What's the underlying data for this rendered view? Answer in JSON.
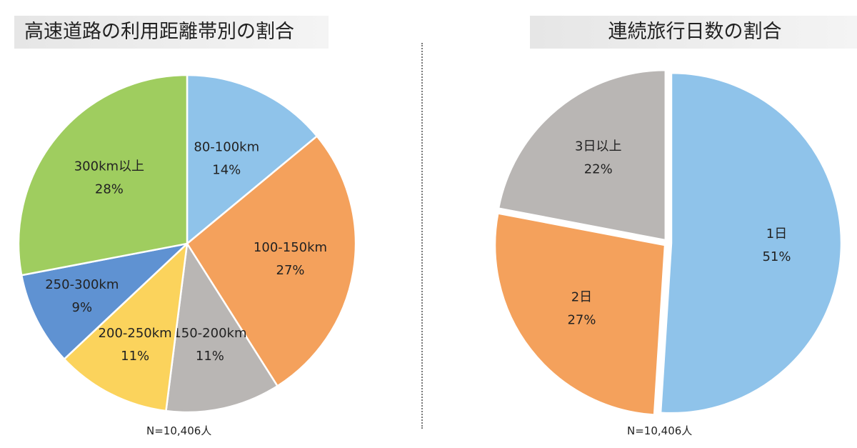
{
  "chart_data": [
    {
      "type": "pie",
      "title": "高速道路の利用距離帯別の割合",
      "note": "N=10,406人",
      "slices": [
        {
          "label": "80-100km",
          "value": 14,
          "color": "#8fc3ea"
        },
        {
          "label": "100-150km",
          "value": 27,
          "color": "#f4a15c"
        },
        {
          "label": "150-200km",
          "value": 11,
          "color": "#b9b6b4"
        },
        {
          "label": "200-250km",
          "value": 11,
          "color": "#fbd35c"
        },
        {
          "label": "250-300km",
          "value": 9,
          "color": "#5f92d2"
        },
        {
          "label": "300km以上",
          "value": 28,
          "color": "#9fcd5f"
        }
      ]
    },
    {
      "type": "pie",
      "title": "連続旅行日数の割合",
      "note": "N=10,406人",
      "slices": [
        {
          "label": "1日",
          "value": 51,
          "color": "#8fc3ea"
        },
        {
          "label": "2日",
          "value": 27,
          "color": "#f4a15c"
        },
        {
          "label": "3日以上",
          "value": 22,
          "color": "#b9b6b4"
        }
      ]
    }
  ]
}
